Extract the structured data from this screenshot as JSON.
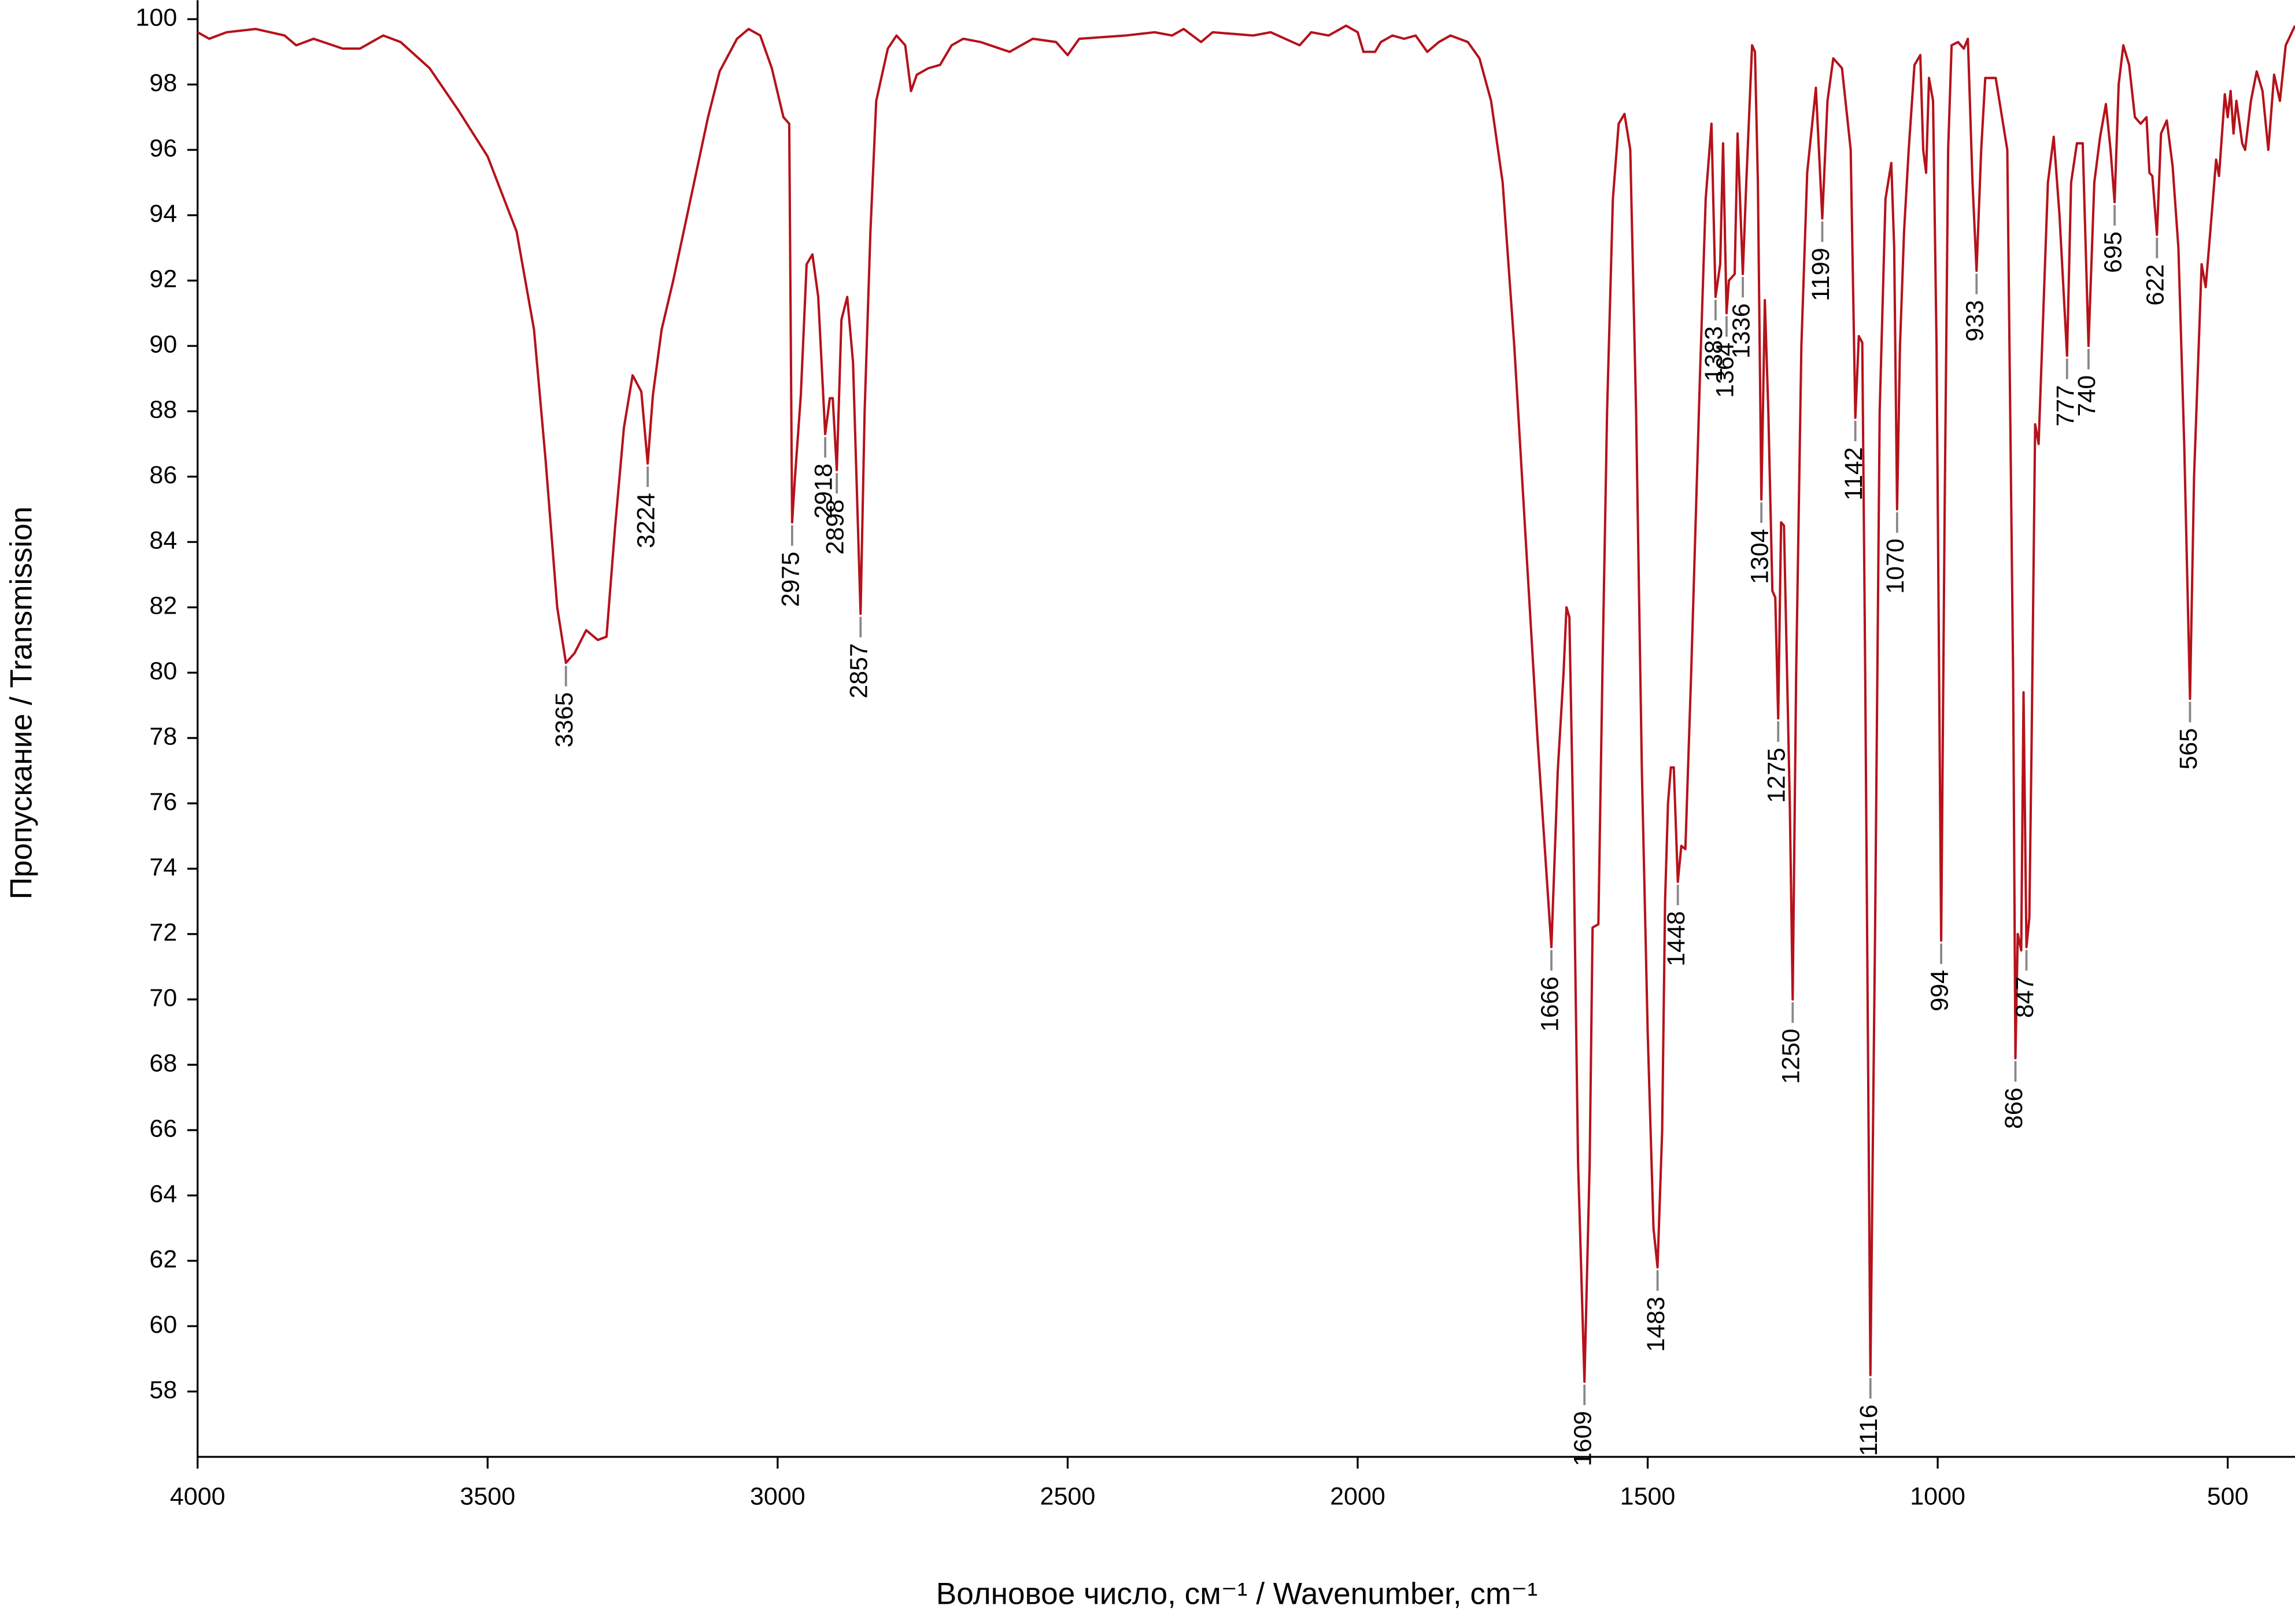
{
  "chart_data": {
    "type": "line",
    "ylabel": "Пропускание / Transmission",
    "xlabel": "Волновое число, см⁻¹ / Wavenumber, cm⁻¹",
    "color": "#b5121b",
    "xlim": [
      4000,
      384
    ],
    "xticks": [
      4000,
      3500,
      3000,
      2500,
      2000,
      1500,
      1000,
      500
    ],
    "ylim": [
      56,
      100.4
    ],
    "yticks": [
      58,
      60,
      62,
      64,
      66,
      68,
      70,
      72,
      74,
      76,
      78,
      80,
      82,
      84,
      86,
      88,
      90,
      92,
      94,
      96,
      98,
      100
    ],
    "x": [
      4000,
      3980,
      3950,
      3900,
      3850,
      3830,
      3800,
      3750,
      3720,
      3680,
      3650,
      3600,
      3550,
      3500,
      3450,
      3420,
      3400,
      3380,
      3365,
      3350,
      3330,
      3310,
      3295,
      3280,
      3265,
      3250,
      3235,
      3224,
      3215,
      3200,
      3180,
      3150,
      3120,
      3100,
      3070,
      3050,
      3030,
      3010,
      2990,
      2980,
      2975,
      2970,
      2960,
      2950,
      2940,
      2930,
      2918,
      2910,
      2905,
      2898,
      2890,
      2880,
      2870,
      2857,
      2850,
      2840,
      2830,
      2810,
      2795,
      2780,
      2770,
      2760,
      2740,
      2720,
      2700,
      2680,
      2650,
      2600,
      2560,
      2520,
      2500,
      2480,
      2400,
      2350,
      2320,
      2300,
      2270,
      2250,
      2180,
      2150,
      2100,
      2080,
      2050,
      2020,
      2000,
      1990,
      1970,
      1960,
      1940,
      1920,
      1900,
      1880,
      1860,
      1840,
      1810,
      1790,
      1770,
      1750,
      1730,
      1710,
      1690,
      1675,
      1666,
      1655,
      1645,
      1640,
      1635,
      1628,
      1620,
      1609,
      1600,
      1595,
      1585,
      1578,
      1570,
      1560,
      1550,
      1540,
      1530,
      1520,
      1510,
      1500,
      1490,
      1483,
      1475,
      1470,
      1465,
      1460,
      1455,
      1448,
      1442,
      1435,
      1425,
      1410,
      1400,
      1390,
      1383,
      1375,
      1370,
      1364,
      1360,
      1350,
      1345,
      1336,
      1330,
      1320,
      1315,
      1310,
      1304,
      1298,
      1292,
      1285,
      1280,
      1275,
      1270,
      1265,
      1255,
      1250,
      1244,
      1235,
      1225,
      1210,
      1199,
      1190,
      1180,
      1165,
      1150,
      1142,
      1136,
      1130,
      1125,
      1116,
      1108,
      1100,
      1090,
      1080,
      1075,
      1070,
      1065,
      1058,
      1050,
      1040,
      1030,
      1025,
      1020,
      1015,
      1008,
      1002,
      994,
      988,
      982,
      976,
      965,
      955,
      948,
      940,
      933,
      925,
      918,
      900,
      880,
      870,
      866,
      862,
      856,
      852,
      847,
      842,
      838,
      832,
      826,
      820,
      810,
      800,
      790,
      777,
      770,
      760,
      750,
      740,
      730,
      720,
      710,
      702,
      695,
      688,
      680,
      670,
      660,
      650,
      640,
      635,
      630,
      622,
      615,
      605,
      595,
      585,
      575,
      565,
      558,
      550,
      545,
      538,
      530,
      520,
      515,
      505,
      500,
      495,
      490,
      485,
      475,
      470,
      460,
      450,
      440,
      430,
      420,
      410,
      400,
      384
    ],
    "values": [
      99.6,
      99.4,
      99.6,
      99.7,
      99.5,
      99.2,
      99.4,
      99.1,
      99.1,
      99.5,
      99.3,
      98.5,
      97.2,
      95.8,
      93.5,
      90.5,
      86.5,
      82,
      80.3,
      80.6,
      81.3,
      81.0,
      81.1,
      84.5,
      87.5,
      89.1,
      88.6,
      86.4,
      88.5,
      90.5,
      92.0,
      94.5,
      97,
      98.4,
      99.4,
      99.7,
      99.5,
      98.5,
      97.0,
      96.8,
      84.6,
      86,
      88.5,
      92.5,
      92.8,
      91.5,
      87.3,
      88.4,
      88.4,
      86.2,
      90.8,
      91.5,
      89.5,
      81.8,
      88,
      93.5,
      97.5,
      99.1,
      99.5,
      99.2,
      97.8,
      98.3,
      98.5,
      98.6,
      99.2,
      99.4,
      99.3,
      99.0,
      99.4,
      99.3,
      98.9,
      99.4,
      99.5,
      99.6,
      99.5,
      99.7,
      99.3,
      99.6,
      99.5,
      99.6,
      99.2,
      99.6,
      99.5,
      99.8,
      99.6,
      99.0,
      99.0,
      99.3,
      99.5,
      99.4,
      99.5,
      99.0,
      99.3,
      99.5,
      99.3,
      98.8,
      97.5,
      95,
      90,
      84,
      78,
      74,
      71.6,
      77,
      80,
      82.0,
      81.7,
      75,
      65,
      58.3,
      65,
      72.2,
      72.3,
      80,
      88,
      94.5,
      96.8,
      97.1,
      96,
      88,
      77,
      69,
      63,
      61.8,
      66,
      73,
      76,
      77.1,
      77.1,
      73.6,
      74.7,
      74.6,
      80,
      89,
      94.5,
      96.8,
      91.5,
      92.5,
      96.2,
      91,
      92,
      92.2,
      96.5,
      92.2,
      95,
      99.2,
      99.0,
      95,
      85.3,
      91.4,
      88,
      82.5,
      82.3,
      78.6,
      84.6,
      84.5,
      76,
      70.0,
      80,
      90,
      95.3,
      97.9,
      93.9,
      97.5,
      98.8,
      98.5,
      96,
      87.8,
      90.3,
      90.1,
      80,
      58.5,
      72,
      88,
      94.5,
      95.6,
      93,
      85.0,
      90,
      93.5,
      96,
      98.6,
      98.9,
      96,
      95.3,
      98.2,
      97.5,
      90,
      71.8,
      85,
      96,
      99.2,
      99.3,
      99.1,
      99.4,
      95,
      92.3,
      96,
      98.2,
      98.2,
      96,
      80,
      68.2,
      72,
      71.5,
      79.4,
      71.6,
      72.5,
      78,
      87.6,
      87.0,
      90,
      95,
      96.4,
      94,
      89.7,
      95,
      96.2,
      96.2,
      90.0,
      95,
      96.4,
      97.4,
      96,
      94.4,
      98,
      99.2,
      98.6,
      97.0,
      96.8,
      97,
      95.3,
      95.2,
      93.4,
      96.5,
      96.9,
      95.5,
      93,
      87,
      79.2,
      86,
      90,
      92.5,
      91.8,
      93.5,
      95.7,
      95.2,
      97.7,
      97.0,
      97.8,
      96.5,
      97.5,
      96.2,
      96.0,
      97.5,
      98.4,
      97.8,
      96,
      98.3,
      97.5,
      99.2,
      99.8
    ],
    "peaks": [
      {
        "x": 3365,
        "y": 80.3
      },
      {
        "x": 3224,
        "y": 86.4
      },
      {
        "x": 2975,
        "y": 84.6
      },
      {
        "x": 2918,
        "y": 87.3
      },
      {
        "x": 2898,
        "y": 86.2
      },
      {
        "x": 2857,
        "y": 81.8
      },
      {
        "x": 1666,
        "y": 71.6
      },
      {
        "x": 1609,
        "y": 58.3
      },
      {
        "x": 1483,
        "y": 61.8
      },
      {
        "x": 1448,
        "y": 73.6
      },
      {
        "x": 1383,
        "y": 91.5
      },
      {
        "x": 1364,
        "y": 91
      },
      {
        "x": 1336,
        "y": 92.2
      },
      {
        "x": 1304,
        "y": 85.3
      },
      {
        "x": 1275,
        "y": 78.6
      },
      {
        "x": 1250,
        "y": 70.0
      },
      {
        "x": 1199,
        "y": 93.9
      },
      {
        "x": 1142,
        "y": 87.8
      },
      {
        "x": 1116,
        "y": 58.5
      },
      {
        "x": 1070,
        "y": 85.0
      },
      {
        "x": 994,
        "y": 71.8
      },
      {
        "x": 933,
        "y": 92.3
      },
      {
        "x": 866,
        "y": 68.2
      },
      {
        "x": 847,
        "y": 71.6
      },
      {
        "x": 777,
        "y": 89.7
      },
      {
        "x": 740,
        "y": 90.0
      },
      {
        "x": 695,
        "y": 94.4
      },
      {
        "x": 622,
        "y": 93.4
      },
      {
        "x": 565,
        "y": 79.2
      }
    ]
  }
}
